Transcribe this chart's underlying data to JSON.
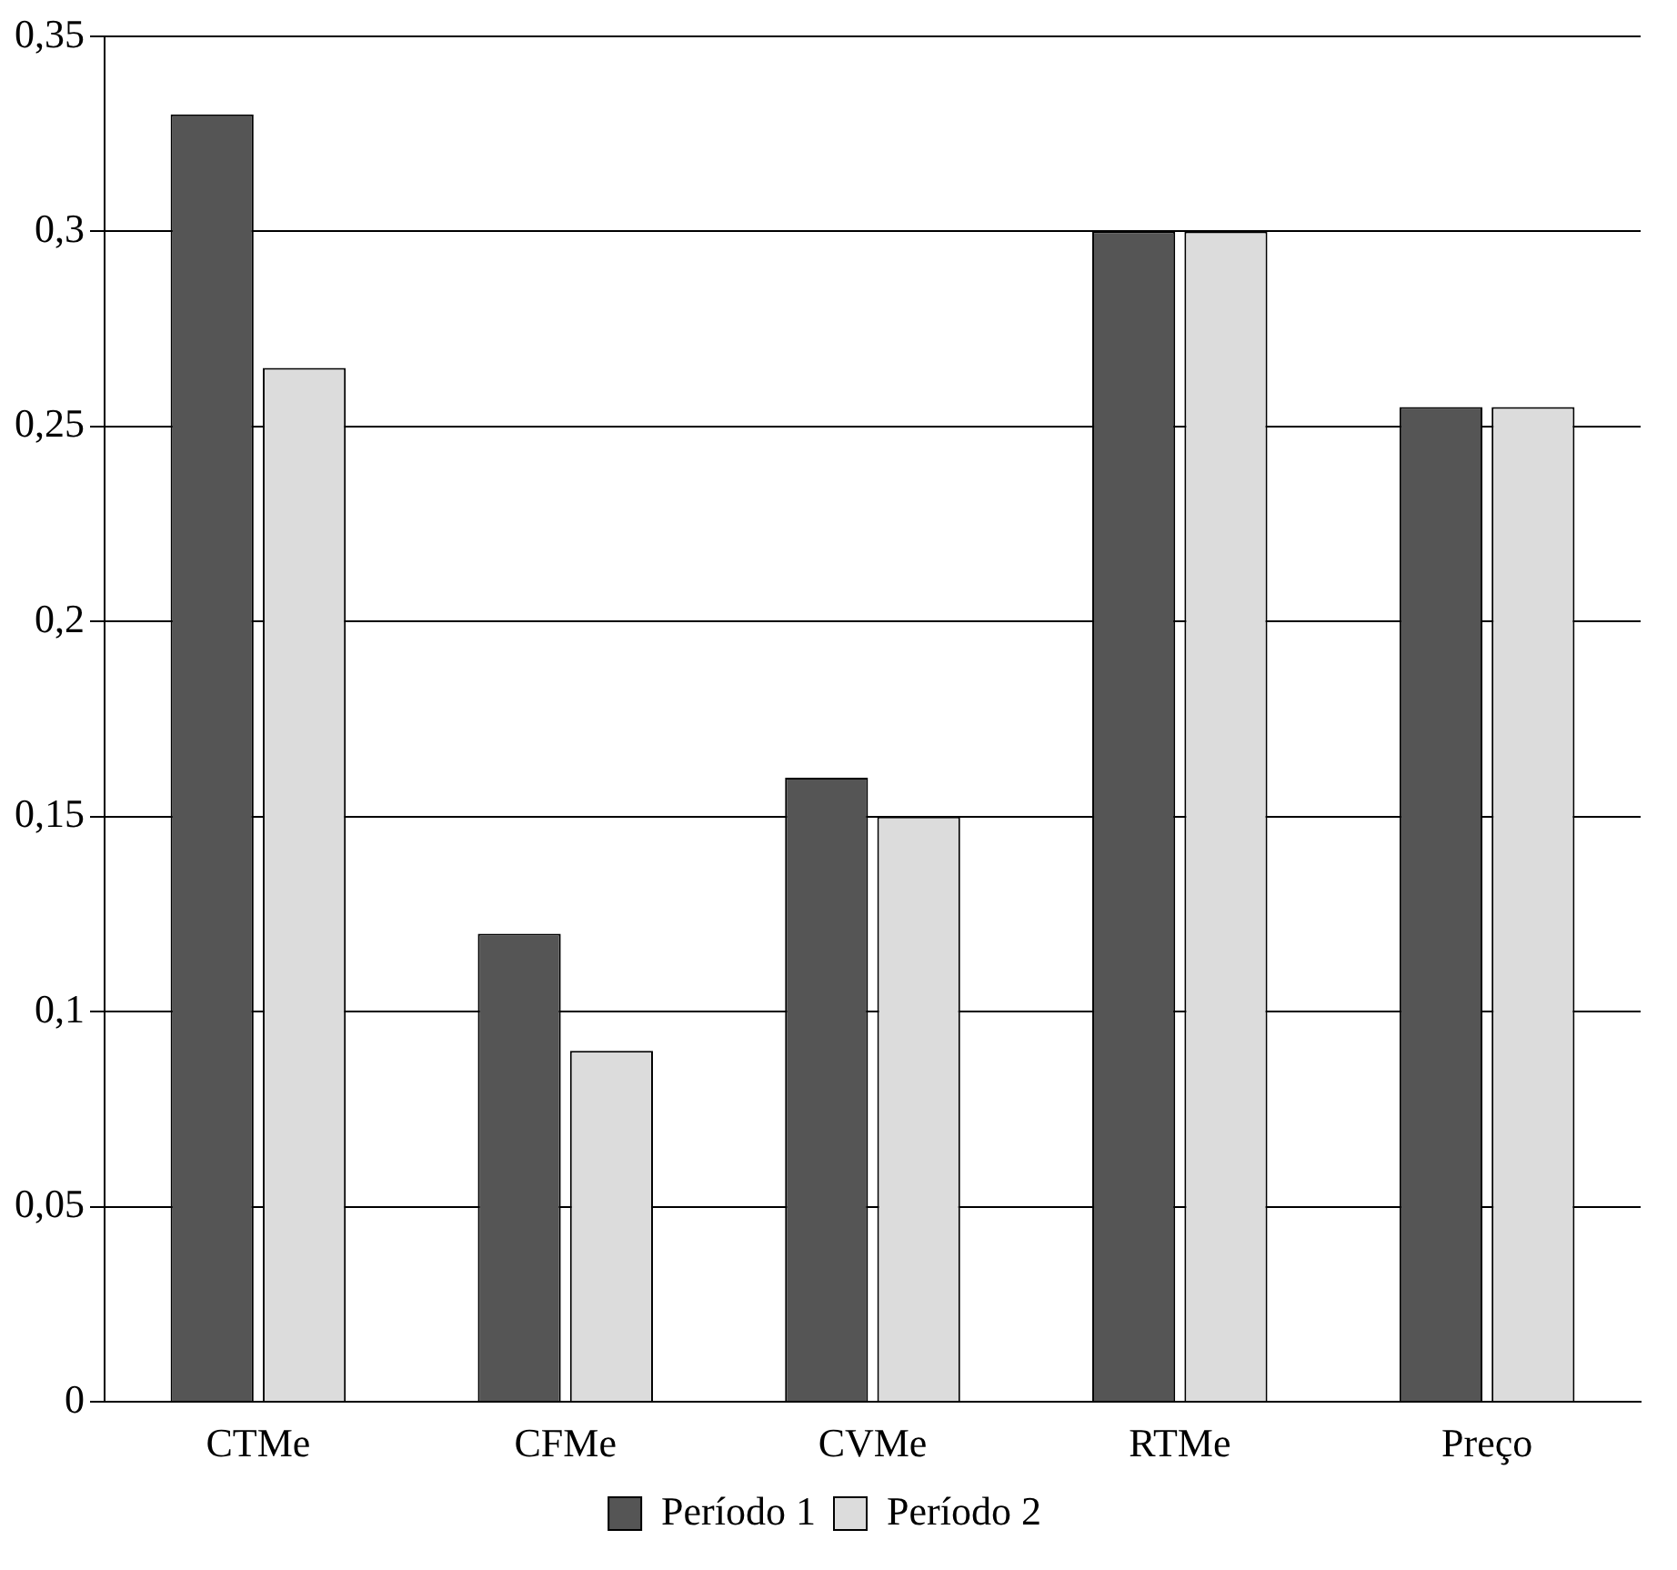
{
  "chart_data": {
    "type": "bar",
    "categories": [
      "CTMe",
      "CFMe",
      "CVMe",
      "RTMe",
      "Preço"
    ],
    "series": [
      {
        "name": "Período 1",
        "color": "#555555",
        "values": [
          0.33,
          0.12,
          0.16,
          0.3,
          0.255
        ]
      },
      {
        "name": "Período 2",
        "color": "#dcdcdc",
        "values": [
          0.265,
          0.09,
          0.15,
          0.3,
          0.255
        ]
      }
    ],
    "ylim": [
      0,
      0.35
    ],
    "yticks": [
      0,
      {
        "value": 0.05,
        "label": "0,05"
      },
      {
        "value": 0.1,
        "label": "0,1"
      },
      {
        "value": 0.15,
        "label": "0,15"
      },
      {
        "value": 0.2,
        "label": "0,2"
      },
      {
        "value": 0.25,
        "label": "0,25"
      },
      {
        "value": 0.3,
        "label": "0,3"
      },
      {
        "value": 0.35,
        "label": "0,35"
      }
    ],
    "grid": "y",
    "legend": "bottom"
  }
}
